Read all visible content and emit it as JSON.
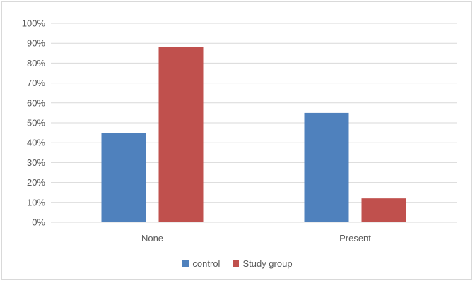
{
  "chart_data": {
    "type": "bar",
    "categories": [
      "None",
      "Present"
    ],
    "series": [
      {
        "name": "control",
        "values": [
          45,
          55
        ],
        "color": "#4f81bd"
      },
      {
        "name": "Study group",
        "values": [
          88,
          12
        ],
        "color": "#c0504d"
      }
    ],
    "y_ticks": [
      "0%",
      "10%",
      "20%",
      "30%",
      "40%",
      "50%",
      "60%",
      "70%",
      "80%",
      "90%",
      "100%"
    ],
    "ylim": [
      0,
      100
    ],
    "grid": true,
    "legend_position": "bottom",
    "title": "",
    "xlabel": "",
    "ylabel": ""
  }
}
